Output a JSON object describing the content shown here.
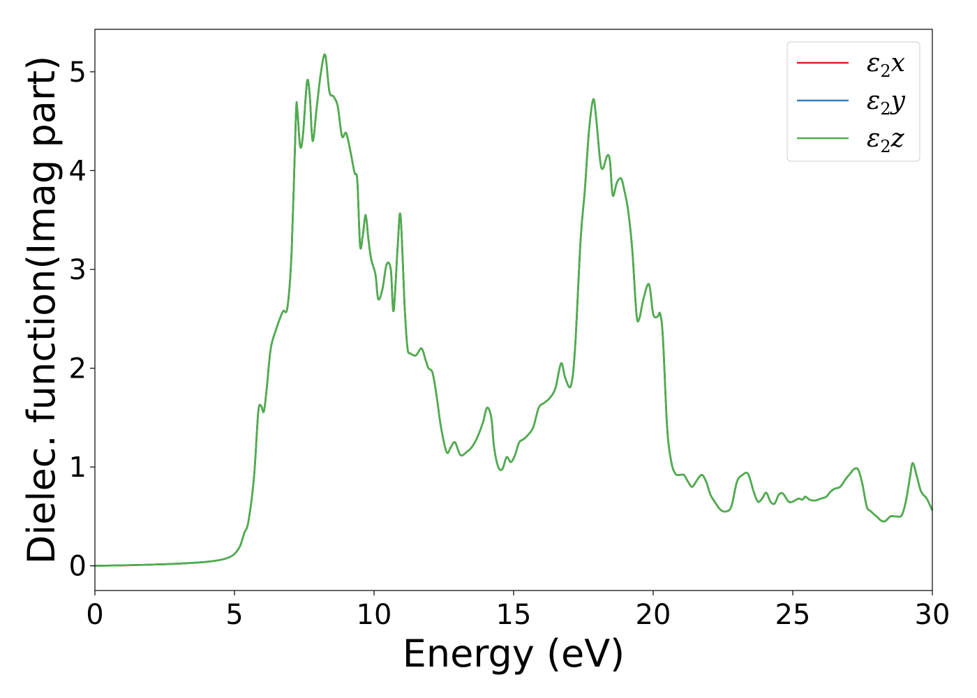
{
  "chart_data": {
    "type": "line",
    "title": "",
    "xlabel": "Energy (eV)",
    "ylabel": "Dielec. function(Imag part)",
    "xlim": [
      0,
      30
    ],
    "ylim": [
      -0.25,
      5.43
    ],
    "xticks": [
      0,
      5,
      10,
      15,
      20,
      25,
      30
    ],
    "yticks": [
      0,
      1,
      2,
      3,
      4,
      5
    ],
    "grid": false,
    "legend_position": "top-right",
    "series": [
      {
        "name": "ε2x",
        "label_main": "ε",
        "label_sub": "2",
        "label_suffix": "x",
        "color": "#e41a1c",
        "x": [
          0,
          1,
          2,
          3,
          4,
          4.5,
          4.8,
          5.0,
          5.2,
          5.35,
          5.5,
          5.7,
          5.85,
          5.95,
          6.05,
          6.15,
          6.3,
          6.5,
          6.65,
          6.75,
          6.9,
          7.05,
          7.2,
          7.25,
          7.35,
          7.45,
          7.6,
          7.7,
          7.8,
          7.95,
          8.1,
          8.25,
          8.4,
          8.55,
          8.7,
          8.85,
          9.0,
          9.15,
          9.3,
          9.4,
          9.5,
          9.6,
          9.7,
          9.8,
          9.9,
          10.05,
          10.15,
          10.3,
          10.45,
          10.6,
          10.7,
          10.85,
          10.95,
          11.1,
          11.2,
          11.3,
          11.5,
          11.7,
          11.85,
          11.95,
          12.1,
          12.25,
          12.4,
          12.6,
          12.75,
          12.9,
          13.1,
          13.35,
          13.5,
          13.7,
          13.9,
          14.05,
          14.2,
          14.3,
          14.45,
          14.6,
          14.75,
          14.9,
          15.05,
          15.2,
          15.35,
          15.5,
          15.7,
          15.9,
          16.1,
          16.3,
          16.5,
          16.7,
          16.85,
          17.05,
          17.2,
          17.4,
          17.55,
          17.7,
          17.85,
          17.95,
          18.1,
          18.2,
          18.35,
          18.45,
          18.55,
          18.7,
          18.85,
          18.95,
          19.1,
          19.25,
          19.4,
          19.5,
          19.65,
          19.85,
          20.0,
          20.15,
          20.25,
          20.35,
          20.5,
          20.65,
          20.8,
          20.95,
          21.1,
          21.25,
          21.4,
          21.6,
          21.75,
          21.9,
          22.05,
          22.2,
          22.4,
          22.6,
          22.8,
          23.0,
          23.2,
          23.4,
          23.6,
          23.75,
          23.9,
          24.05,
          24.2,
          24.35,
          24.5,
          24.65,
          24.85,
          25.0,
          25.2,
          25.35,
          25.45,
          25.6,
          25.8,
          26.0,
          26.2,
          26.35,
          26.5,
          26.7,
          26.9,
          27.05,
          27.2,
          27.35,
          27.5,
          27.65,
          27.8,
          28.0,
          28.15,
          28.3,
          28.5,
          28.7,
          28.9,
          29.05,
          29.2,
          29.3,
          29.45,
          29.6,
          29.8,
          30.0
        ],
        "y": [
          0.0,
          0.005,
          0.012,
          0.022,
          0.04,
          0.06,
          0.085,
          0.12,
          0.2,
          0.33,
          0.45,
          0.9,
          1.55,
          1.62,
          1.56,
          1.78,
          2.2,
          2.4,
          2.52,
          2.58,
          2.62,
          3.2,
          4.55,
          4.62,
          4.25,
          4.35,
          4.9,
          4.75,
          4.3,
          4.65,
          5.0,
          5.17,
          4.8,
          4.75,
          4.65,
          4.35,
          4.38,
          4.2,
          3.98,
          3.9,
          3.24,
          3.35,
          3.55,
          3.3,
          3.1,
          2.95,
          2.7,
          2.8,
          3.05,
          3.0,
          2.58,
          3.25,
          3.54,
          2.6,
          2.2,
          2.15,
          2.13,
          2.2,
          2.08,
          2.0,
          1.95,
          1.7,
          1.4,
          1.15,
          1.2,
          1.25,
          1.12,
          1.16,
          1.2,
          1.3,
          1.45,
          1.6,
          1.5,
          1.2,
          1.0,
          0.98,
          1.1,
          1.05,
          1.12,
          1.25,
          1.28,
          1.32,
          1.4,
          1.6,
          1.65,
          1.7,
          1.8,
          2.05,
          1.9,
          1.82,
          2.2,
          3.3,
          3.8,
          4.4,
          4.72,
          4.55,
          4.1,
          4.02,
          4.15,
          4.1,
          3.75,
          3.88,
          3.92,
          3.82,
          3.6,
          3.2,
          2.55,
          2.5,
          2.7,
          2.85,
          2.55,
          2.52,
          2.55,
          2.3,
          1.4,
          1.05,
          0.93,
          0.92,
          0.92,
          0.85,
          0.8,
          0.88,
          0.92,
          0.85,
          0.72,
          0.65,
          0.57,
          0.55,
          0.6,
          0.85,
          0.92,
          0.93,
          0.75,
          0.65,
          0.68,
          0.74,
          0.65,
          0.63,
          0.72,
          0.73,
          0.65,
          0.65,
          0.68,
          0.67,
          0.7,
          0.67,
          0.66,
          0.68,
          0.7,
          0.75,
          0.78,
          0.8,
          0.88,
          0.93,
          0.98,
          0.97,
          0.82,
          0.6,
          0.55,
          0.5,
          0.46,
          0.45,
          0.5,
          0.5,
          0.51,
          0.65,
          0.9,
          1.04,
          0.9,
          0.75,
          0.68,
          0.56
        ]
      },
      {
        "name": "ε2y",
        "label_main": "ε",
        "label_sub": "2",
        "label_suffix": "y",
        "color": "#377eb8",
        "same_as": 0
      },
      {
        "name": "ε2z",
        "label_main": "ε",
        "label_sub": "2",
        "label_suffix": "z",
        "color": "#4daf4a",
        "same_as": 0
      }
    ]
  }
}
